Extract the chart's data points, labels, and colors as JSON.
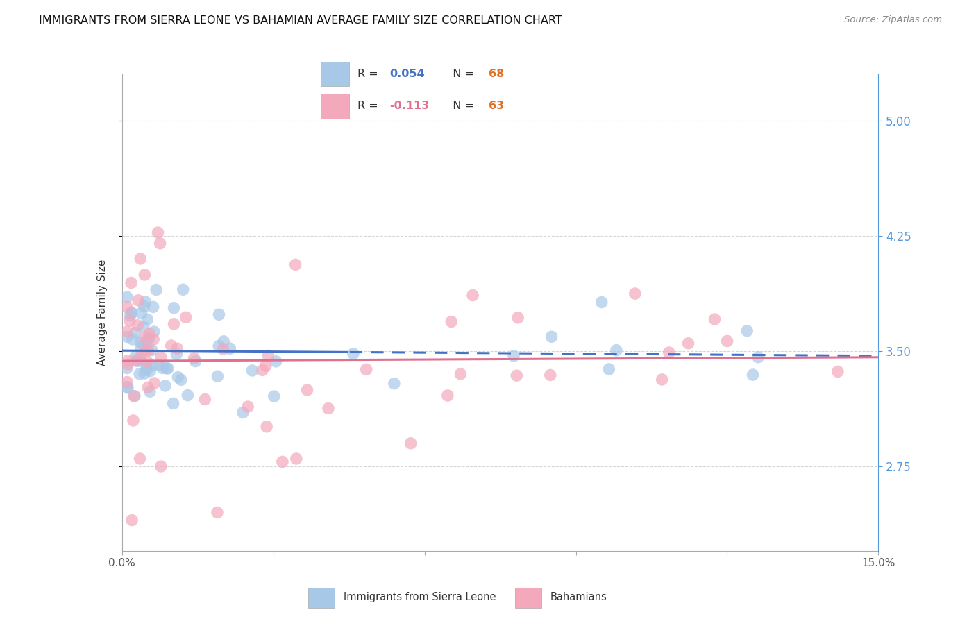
{
  "title": "IMMIGRANTS FROM SIERRA LEONE VS BAHAMIAN AVERAGE FAMILY SIZE CORRELATION CHART",
  "source": "Source: ZipAtlas.com",
  "ylabel": "Average Family Size",
  "yticks": [
    2.75,
    3.5,
    4.25,
    5.0
  ],
  "xlim": [
    0.0,
    0.15
  ],
  "ylim": [
    2.2,
    5.3
  ],
  "series1_label": "Immigrants from Sierra Leone",
  "series2_label": "Bahamians",
  "series1_R": 0.054,
  "series1_N": 68,
  "series2_R": -0.113,
  "series2_N": 63,
  "series1_color": "#a8c8e8",
  "series2_color": "#f4a8bc",
  "trendline1_color": "#4472c4",
  "trendline2_color": "#e07090",
  "background_color": "#ffffff",
  "grid_color": "#cccccc",
  "right_axis_color": "#5599dd",
  "title_fontsize": 11.5,
  "legend_R1_color": "#4472c4",
  "legend_R2_color": "#e07090",
  "legend_N_color": "#e07020"
}
